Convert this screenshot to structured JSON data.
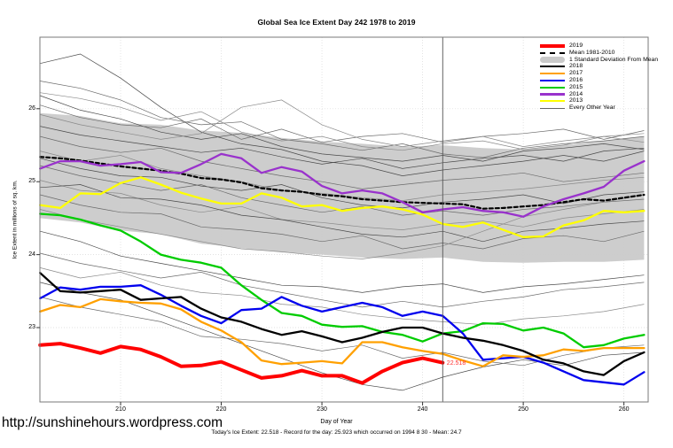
{
  "title": "Global Sea Ice Extent Day 242 1978 to 2019",
  "footer": {
    "url": "http://sunshinehours.wordpress.com",
    "xlabel": "Day of Year",
    "summary": "Today's Ice Extent: 22.518  - Record for the day: 25.923 which occurred on 1994 8 30  - Mean: 24.7"
  },
  "annotation": {
    "label": "22.518",
    "day": 242,
    "value": 22.518,
    "color": "#ff3333"
  },
  "legend": {
    "items": [
      {
        "label": "2019",
        "color": "#FF0000",
        "style": "thick"
      },
      {
        "label": "Mean 1981-2010",
        "color": "#000000",
        "style": "dashed"
      },
      {
        "label": "1 Standard Deviation From Mean",
        "color": "#CACACA",
        "style": "band"
      },
      {
        "label": "2018",
        "color": "#000000",
        "style": "line"
      },
      {
        "label": "2017",
        "color": "#FFA000",
        "style": "line"
      },
      {
        "label": "2016",
        "color": "#0000EE",
        "style": "line"
      },
      {
        "label": "2015",
        "color": "#00CC00",
        "style": "line"
      },
      {
        "label": "2014",
        "color": "#9932CC",
        "style": "line"
      },
      {
        "label": "2013",
        "color": "#FFFF00",
        "style": "line"
      },
      {
        "label": "Every Other Year",
        "color": "#666666",
        "style": "thin"
      }
    ]
  },
  "chart_data": {
    "type": "line",
    "title": "Global Sea Ice Extent Day 242 1978 to 2019",
    "xlabel": "Day of Year",
    "ylabel": "Ice Extent in millions of sq. km.",
    "xlim": [
      202,
      262.4
    ],
    "ylim": [
      22,
      27
    ],
    "xticks": [
      210,
      220,
      230,
      240,
      250,
      260
    ],
    "yticks": [
      23,
      24,
      25,
      26
    ],
    "grid": "dotted",
    "legend_position": "top-right",
    "marker_day": 242,
    "days": [
      202,
      204,
      206,
      208,
      210,
      212,
      214,
      216,
      218,
      220,
      222,
      224,
      226,
      228,
      230,
      232,
      234,
      236,
      238,
      240,
      242,
      244,
      246,
      248,
      250,
      252,
      254,
      256,
      258,
      260,
      262
    ],
    "series": [
      {
        "name": "Mean 1981-2010",
        "color": "#000000",
        "width": 2.2,
        "dash": "4,3",
        "values": [
          25.34,
          25.32,
          25.29,
          25.25,
          25.21,
          25.18,
          25.15,
          25.11,
          25.05,
          25.03,
          24.99,
          24.91,
          24.88,
          24.86,
          24.82,
          24.8,
          24.76,
          24.74,
          24.72,
          24.71,
          24.7,
          24.69,
          24.63,
          24.64,
          24.66,
          24.68,
          24.72,
          24.76,
          24.74,
          24.78,
          24.82
        ]
      },
      {
        "name": "2013",
        "color": "#FFFF00",
        "width": 2.3,
        "dash": "",
        "values": [
          24.68,
          24.64,
          24.84,
          24.83,
          24.98,
          25.06,
          24.96,
          24.85,
          24.77,
          24.7,
          24.7,
          24.84,
          24.78,
          24.66,
          24.68,
          24.6,
          24.64,
          24.66,
          24.62,
          24.55,
          24.42,
          24.38,
          24.44,
          24.34,
          24.24,
          24.25,
          24.4,
          24.47,
          24.6,
          24.58,
          24.6
        ]
      },
      {
        "name": "2014",
        "color": "#9932CC",
        "width": 2.3,
        "dash": "",
        "values": [
          25.18,
          25.28,
          25.28,
          25.22,
          25.24,
          25.27,
          25.13,
          25.12,
          25.24,
          25.38,
          25.32,
          25.12,
          25.2,
          25.14,
          24.94,
          24.84,
          24.88,
          24.84,
          24.72,
          24.58,
          24.62,
          24.65,
          24.6,
          24.58,
          24.52,
          24.66,
          24.76,
          24.84,
          24.93,
          25.15,
          25.28
        ]
      },
      {
        "name": "2015",
        "color": "#00CC00",
        "width": 2.3,
        "dash": "",
        "values": [
          24.56,
          24.54,
          24.48,
          24.4,
          24.33,
          24.18,
          24.0,
          23.93,
          23.89,
          23.82,
          23.58,
          23.38,
          23.2,
          23.16,
          23.04,
          23.01,
          23.02,
          22.94,
          22.9,
          22.81,
          22.92,
          22.95,
          23.06,
          23.05,
          22.96,
          23.0,
          22.92,
          22.73,
          22.76,
          22.85,
          22.9
        ]
      },
      {
        "name": "2016",
        "color": "#0000EE",
        "width": 2.3,
        "dash": "",
        "values": [
          23.4,
          23.55,
          23.52,
          23.56,
          23.56,
          23.58,
          23.45,
          23.3,
          23.16,
          23.06,
          23.24,
          23.26,
          23.42,
          23.3,
          23.22,
          23.28,
          23.34,
          23.28,
          23.16,
          23.22,
          23.16,
          22.92,
          22.56,
          22.58,
          22.6,
          22.52,
          22.4,
          22.28,
          22.25,
          22.22,
          22.39
        ]
      },
      {
        "name": "2017",
        "color": "#FFA000",
        "width": 2.3,
        "dash": "",
        "values": [
          23.22,
          23.31,
          23.28,
          23.39,
          23.36,
          23.34,
          23.33,
          23.25,
          23.08,
          22.96,
          22.8,
          22.55,
          22.5,
          22.52,
          22.54,
          22.51,
          22.8,
          22.8,
          22.73,
          22.68,
          22.64,
          22.55,
          22.47,
          22.62,
          22.6,
          22.62,
          22.7,
          22.68,
          22.72,
          22.72,
          22.72
        ]
      },
      {
        "name": "2018",
        "color": "#000000",
        "width": 2.3,
        "dash": "",
        "values": [
          23.75,
          23.5,
          23.48,
          23.5,
          23.52,
          23.38,
          23.4,
          23.42,
          23.26,
          23.14,
          23.08,
          22.98,
          22.9,
          22.95,
          22.88,
          22.8,
          22.86,
          22.94,
          23.0,
          23.0,
          22.92,
          22.86,
          22.82,
          22.76,
          22.68,
          22.56,
          22.51,
          22.4,
          22.35,
          22.54,
          22.66
        ]
      },
      {
        "name": "2019",
        "color": "#FF0000",
        "width": 4,
        "dash": "",
        "values": [
          22.76,
          22.78,
          22.72,
          22.65,
          22.74,
          22.7,
          22.6,
          22.47,
          22.48,
          22.53,
          22.42,
          22.31,
          22.34,
          22.41,
          22.34,
          22.34,
          22.24,
          22.4,
          22.52,
          22.58,
          22.518
        ]
      }
    ],
    "band": {
      "label": "1 Standard Deviation From Mean",
      "color": "#CACACA",
      "days": [
        202,
        206,
        210,
        214,
        218,
        222,
        226,
        230,
        234,
        238,
        242,
        246,
        250,
        254,
        258,
        262
      ],
      "upper": [
        25.94,
        25.9,
        25.8,
        25.78,
        25.7,
        25.67,
        25.6,
        25.55,
        25.52,
        25.48,
        25.5,
        25.46,
        25.44,
        25.5,
        25.56,
        25.62
      ],
      "lower": [
        24.5,
        24.44,
        24.33,
        24.28,
        24.15,
        24.09,
        24.03,
        24.0,
        23.96,
        23.94,
        23.96,
        23.9,
        23.89,
        23.9,
        23.9,
        23.93
      ]
    },
    "other_years": {
      "label": "Every Other Year",
      "days": [
        202,
        206,
        210,
        214,
        218,
        222,
        226,
        230,
        234,
        238,
        242,
        246,
        250,
        254,
        258,
        262
      ],
      "series": [
        [
          26.62,
          26.75,
          26.42,
          26.02,
          25.68,
          25.52,
          25.44,
          25.28,
          25.22,
          25.08,
          25.16,
          25.22,
          25.28,
          25.36,
          25.28,
          25.42
        ],
        [
          26.38,
          26.28,
          26.12,
          25.88,
          25.78,
          25.82,
          25.58,
          25.52,
          25.43,
          25.52,
          25.38,
          25.33,
          25.46,
          25.52,
          25.56,
          25.62
        ],
        [
          26.22,
          26.14,
          26.02,
          25.84,
          25.96,
          25.68,
          25.56,
          25.62,
          25.48,
          25.43,
          25.52,
          25.56,
          25.44,
          25.5,
          25.62,
          25.54
        ],
        [
          26.18,
          25.98,
          25.86,
          25.68,
          25.58,
          25.66,
          25.48,
          25.38,
          25.33,
          25.28,
          25.36,
          25.28,
          25.42,
          25.46,
          25.52,
          25.44
        ],
        [
          26.05,
          25.88,
          25.78,
          25.74,
          25.86,
          25.58,
          25.72,
          25.54,
          25.62,
          25.66,
          25.54,
          25.62,
          25.66,
          25.72,
          25.58,
          25.7
        ],
        [
          25.92,
          25.78,
          25.68,
          25.58,
          25.66,
          26.02,
          26.12,
          25.78,
          25.58,
          25.48,
          25.56,
          25.62,
          25.48,
          25.56,
          25.62,
          25.66
        ],
        [
          25.76,
          25.64,
          25.56,
          25.48,
          25.4,
          25.46,
          25.34,
          25.24,
          25.32,
          25.18,
          25.26,
          25.32,
          25.36,
          25.28,
          25.42,
          25.46
        ],
        [
          25.62,
          25.48,
          25.4,
          25.46,
          25.28,
          25.18,
          25.08,
          25.0,
          24.9,
          24.96,
          25.02,
          25.06,
          25.12,
          25.0,
          25.06,
          25.12
        ],
        [
          25.42,
          25.28,
          25.36,
          25.18,
          25.08,
          25.0,
          24.88,
          24.84,
          24.78,
          24.74,
          24.82,
          24.86,
          24.9,
          24.96,
          25.02,
          25.06
        ],
        [
          25.32,
          25.18,
          25.08,
          25.06,
          24.94,
          24.88,
          24.96,
          24.78,
          24.68,
          24.64,
          24.72,
          24.76,
          24.82,
          24.7,
          24.82,
          24.86
        ],
        [
          25.22,
          25.08,
          24.98,
          24.88,
          24.96,
          24.78,
          24.68,
          24.58,
          24.66,
          24.54,
          24.6,
          24.54,
          24.62,
          24.66,
          24.72,
          24.76
        ],
        [
          25.02,
          24.88,
          24.84,
          24.68,
          24.58,
          24.66,
          24.48,
          24.44,
          24.38,
          24.34,
          24.42,
          24.46,
          24.38,
          24.5,
          24.56,
          24.62
        ],
        [
          24.92,
          24.96,
          24.78,
          24.76,
          24.68,
          24.54,
          24.48,
          24.38,
          24.28,
          24.24,
          24.32,
          24.18,
          24.32,
          24.36,
          24.42,
          24.46
        ],
        [
          24.82,
          24.68,
          24.58,
          24.56,
          24.38,
          24.34,
          24.28,
          24.18,
          24.26,
          24.08,
          24.16,
          24.08,
          24.22,
          24.26,
          24.18,
          24.32
        ],
        [
          24.62,
          24.48,
          24.38,
          24.28,
          24.18,
          24.08,
          24.04,
          23.98,
          23.94,
          24.02,
          24.12,
          24.32,
          24.52,
          24.62,
          24.72,
          24.82
        ],
        [
          24.32,
          24.18,
          23.98,
          23.88,
          23.78,
          23.68,
          23.58,
          23.56,
          23.48,
          23.56,
          23.6,
          23.48,
          23.56,
          23.6,
          23.66,
          23.72
        ],
        [
          24.02,
          23.88,
          23.78,
          23.68,
          23.76,
          23.58,
          23.48,
          23.38,
          23.28,
          23.36,
          23.28,
          23.36,
          23.42,
          23.52,
          23.56,
          23.62
        ],
        [
          23.82,
          23.68,
          23.76,
          23.58,
          23.48,
          23.44,
          23.32,
          23.28,
          23.18,
          23.12,
          23.08,
          23.04,
          23.12,
          23.16,
          23.22,
          23.32
        ],
        [
          23.62,
          23.48,
          23.38,
          23.18,
          22.98,
          22.78,
          22.58,
          22.38,
          22.22,
          22.14,
          22.32,
          22.46,
          22.56,
          22.48,
          22.62,
          22.66
        ],
        [
          23.42,
          23.28,
          23.18,
          23.08,
          22.88,
          22.84,
          22.78,
          22.68,
          22.76,
          22.58,
          22.66,
          22.54,
          22.48,
          22.62,
          22.72,
          22.76
        ]
      ]
    }
  }
}
